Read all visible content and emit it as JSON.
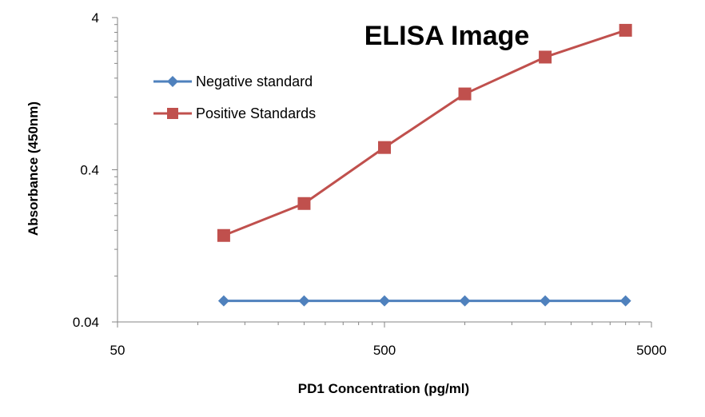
{
  "chart_data": {
    "type": "line",
    "title": "ELISA Image",
    "xlabel": "PD1 Concentration (pg/ml)",
    "ylabel": "Absorbance (450nm)",
    "x_scale": "log",
    "y_scale": "log",
    "xlim": [
      50,
      5000
    ],
    "ylim": [
      0.04,
      4
    ],
    "x_tick_labels": [
      "50",
      "500",
      "5000"
    ],
    "y_tick_labels": [
      "4",
      "0.4",
      "0.04"
    ],
    "x_ticks": [
      50,
      500,
      5000
    ],
    "y_ticks": [
      4,
      0.4,
      0.04
    ],
    "grid": false,
    "legend_position": "top-left",
    "x": [
      125,
      250,
      500,
      1000,
      2000,
      4000
    ],
    "series": [
      {
        "name": "Negative standard",
        "color": "#4F81BD",
        "marker": "diamond",
        "values": [
          0.055,
          0.055,
          0.055,
          0.055,
          0.055,
          0.055
        ]
      },
      {
        "name": "Positive Standards",
        "color": "#C0504D",
        "marker": "square",
        "values": [
          0.148,
          0.24,
          0.56,
          1.26,
          2.2,
          3.3
        ]
      }
    ]
  }
}
